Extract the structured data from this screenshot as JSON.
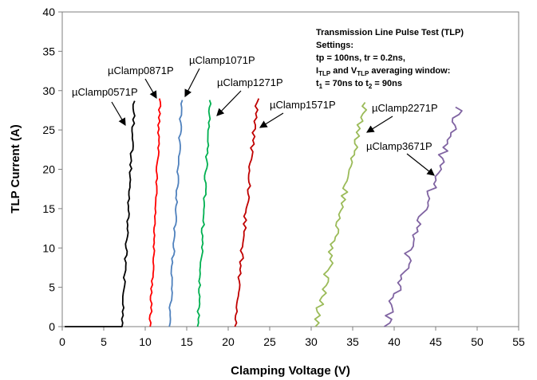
{
  "chart_data": {
    "type": "line",
    "title": "",
    "xlabel": "Clamping Voltage (V)",
    "ylabel": "TLP Current (A)",
    "xlim": [
      0,
      55
    ],
    "ylim": [
      0,
      40
    ],
    "xticks": [
      "0",
      "5",
      "10",
      "15",
      "20",
      "25",
      "30",
      "35",
      "40",
      "45",
      "50",
      "55"
    ],
    "yticks": [
      "0",
      "5",
      "10",
      "15",
      "20",
      "25",
      "30",
      "35",
      "40"
    ],
    "grid": false,
    "note": {
      "title": "Transmission Line Pulse Test (TLP)",
      "settings": "Settings:",
      "line1": "tp = 100ns, tr = 0.2ns,",
      "line2_a": "I",
      "line2_sub_a": "TLP",
      "line2_b": " and V",
      "line2_sub_b": "TLP",
      "line2_c": " averaging window:",
      "line3_a": "t",
      "line3_sub_a": "1",
      "line3_b": " = 70ns to t",
      "line3_sub_b": "2",
      "line3_c": " = 90ns"
    },
    "series": [
      {
        "name": "µClamp0571P",
        "color": "#000000",
        "x": [
          0.3,
          7.2,
          8.7
        ],
        "y": [
          0,
          0,
          28.7
        ]
      },
      {
        "name": "µClamp0871P",
        "color": "#ff0000",
        "x": [
          10.6,
          11.8
        ],
        "y": [
          0,
          29.0
        ]
      },
      {
        "name": "µClamp1071P",
        "color": "#4f81bd",
        "x": [
          12.9,
          14.4
        ],
        "y": [
          0,
          28.8
        ]
      },
      {
        "name": "µClamp1271P",
        "color": "#00b050",
        "x": [
          16.3,
          17.8
        ],
        "y": [
          0,
          28.8
        ]
      },
      {
        "name": "µClamp1571P",
        "color": "#c00000",
        "x": [
          20.8,
          23.5
        ],
        "y": [
          0,
          29.0
        ]
      },
      {
        "name": "µClamp2271P",
        "color": "#9bbb59",
        "x": [
          30.5,
          36.5
        ],
        "y": [
          0,
          28.5
        ]
      },
      {
        "name": "µClamp3671P",
        "color": "#8064a2",
        "x": [
          38.8,
          47.9
        ],
        "y": [
          0,
          27.9
        ]
      }
    ],
    "annotations": [
      {
        "text": "µClamp0571P",
        "series": 0
      },
      {
        "text": "µClamp0871P",
        "series": 1
      },
      {
        "text": "µClamp1071P",
        "series": 2
      },
      {
        "text": "µClamp1271P",
        "series": 3
      },
      {
        "text": "µClamp1571P",
        "series": 4
      },
      {
        "text": "µClamp2271P",
        "series": 5
      },
      {
        "text": "µClamp3671P",
        "series": 6
      }
    ]
  }
}
